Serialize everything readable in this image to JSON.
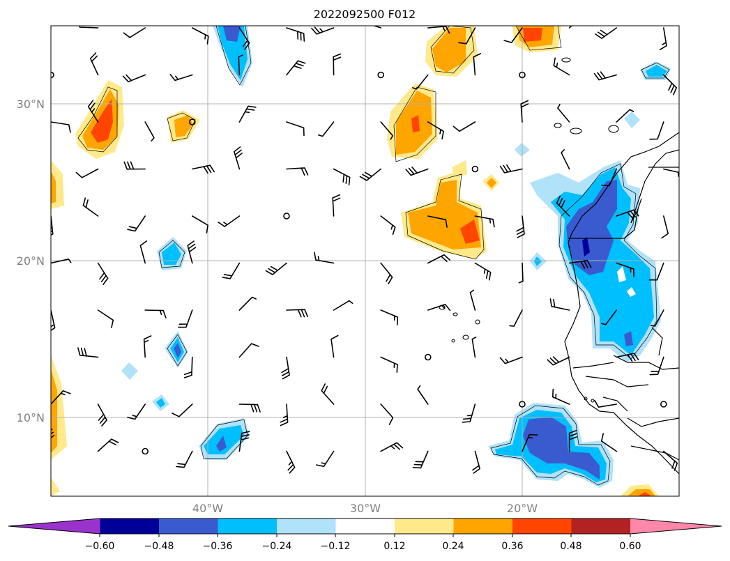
{
  "title": "2022092500 F012",
  "lat_labels": [
    "30°N",
    "20°N",
    "10°N"
  ],
  "lon_labels": [
    "40°W",
    "30°W",
    "20°W"
  ],
  "colorbar": {
    "colors": [
      "#9933cc",
      "#000099",
      "#3a5bd0",
      "#00bfff",
      "#b0e2fa",
      "#ffffff",
      "#ffe98a",
      "#ffa500",
      "#ff4500",
      "#b22222",
      "#ff88aa"
    ],
    "tick_labels": [
      "−0.60",
      "−0.48",
      "−0.36",
      "−0.24",
      "−0.12",
      "0.12",
      "0.24",
      "0.36",
      "0.48",
      "0.60"
    ]
  }
}
